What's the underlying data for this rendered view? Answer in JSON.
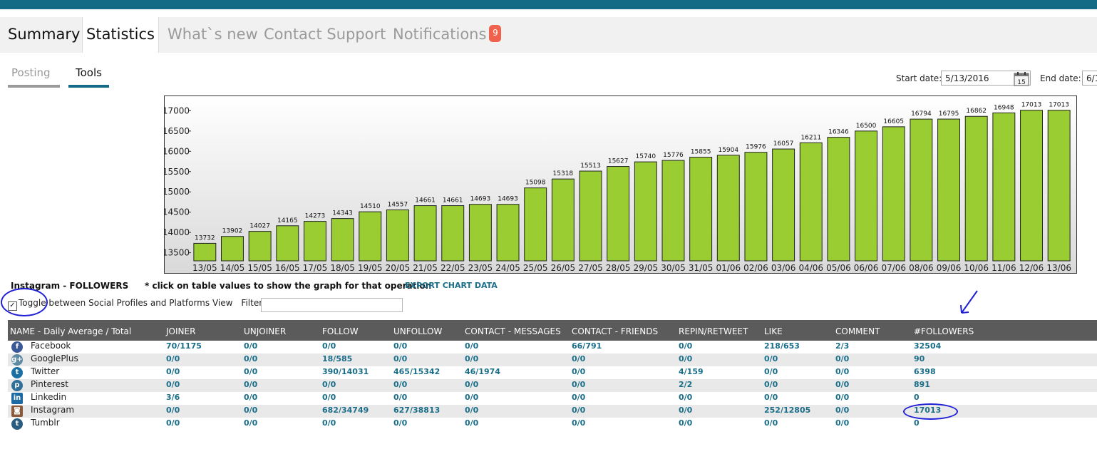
{
  "main_tabs": [
    {
      "label": "Summary",
      "state": "normal"
    },
    {
      "label": "Statistics",
      "state": "active"
    },
    {
      "label": "What`s new",
      "state": "inactive"
    },
    {
      "label": "Contact Support",
      "state": "inactive"
    },
    {
      "label": "Notifications",
      "state": "inactive"
    }
  ],
  "notifications_badge": "9",
  "sub_tabs": [
    {
      "label": "Posting"
    },
    {
      "label": "Tools"
    }
  ],
  "dates": {
    "start_label": "Start date:",
    "start_value": "5/13/2016",
    "calendar_day": "15",
    "end_label": "End date:",
    "end_value": "6/1"
  },
  "chart_title": "Instagram - FOLLOWERS",
  "chart_note": "* click on table values to show the graph for that operation",
  "export_label": "EXPORT CHART DATA",
  "toggle_label": "Toggle between Social Profiles and Platforms View",
  "filter_label": "Filter:",
  "filter_value": "",
  "chart_data": {
    "type": "bar",
    "categories": [
      "13/05",
      "14/05",
      "15/05",
      "16/05",
      "17/05",
      "18/05",
      "19/05",
      "20/05",
      "21/05",
      "22/05",
      "23/05",
      "24/05",
      "25/05",
      "26/05",
      "27/05",
      "28/05",
      "29/05",
      "30/05",
      "31/05",
      "01/06",
      "02/06",
      "03/06",
      "04/06",
      "05/06",
      "06/06",
      "07/06",
      "08/06",
      "09/06",
      "10/06",
      "11/06",
      "12/06",
      "13/06"
    ],
    "values": [
      13732,
      13902,
      14027,
      14165,
      14273,
      14343,
      14510,
      14557,
      14661,
      14661,
      14693,
      14693,
      15098,
      15318,
      15513,
      15627,
      15740,
      15776,
      15855,
      15904,
      15976,
      16057,
      16211,
      16346,
      16500,
      16605,
      16794,
      16795,
      16862,
      16948,
      17013,
      17013
    ],
    "yticks": [
      13500,
      14000,
      14500,
      15000,
      15500,
      16000,
      16500,
      17000
    ],
    "ylim": [
      13300,
      17200
    ],
    "bar_color": "#9acd32",
    "data_labels": true
  },
  "table": {
    "columns": [
      "NAME - Daily Average / Total",
      "JOINER",
      "UNJOINER",
      "FOLLOW",
      "UNFOLLOW",
      "CONTACT - MESSAGES",
      "CONTACT - FRIENDS",
      "REPIN/RETWEET",
      "LIKE",
      "COMMENT",
      "#FOLLOWERS"
    ],
    "rows": [
      {
        "name": "Facebook",
        "icon": "facebook-icon",
        "icon_glyph": "f",
        "color": "#3b5998",
        "cells": [
          "70/1175",
          "0/0",
          "0/0",
          "0/0",
          "0/0",
          "66/791",
          "0/0",
          "218/653",
          "2/3",
          "32504"
        ]
      },
      {
        "name": "GooglePlus",
        "icon": "googleplus-icon",
        "icon_glyph": "g+",
        "color": "#5e8aa4",
        "cells": [
          "0/0",
          "0/0",
          "18/585",
          "0/0",
          "0/0",
          "0/0",
          "0/0",
          "0/0",
          "0/0",
          "90"
        ]
      },
      {
        "name": "Twitter",
        "icon": "twitter-icon",
        "icon_glyph": "t",
        "color": "#1b6fa3",
        "cells": [
          "0/0",
          "0/0",
          "390/14031",
          "465/15342",
          "46/1974",
          "0/0",
          "4/159",
          "0/0",
          "0/0",
          "6398"
        ]
      },
      {
        "name": "Pinterest",
        "icon": "pinterest-icon",
        "icon_glyph": "p",
        "color": "#2f6f9a",
        "cells": [
          "0/0",
          "0/0",
          "0/0",
          "0/0",
          "0/0",
          "0/0",
          "2/2",
          "0/0",
          "0/0",
          "891"
        ]
      },
      {
        "name": "Linkedin",
        "icon": "linkedin-icon",
        "icon_glyph": "in",
        "color": "#1d6aa3",
        "cells": [
          "3/6",
          "0/0",
          "0/0",
          "0/0",
          "0/0",
          "0/0",
          "0/0",
          "0/0",
          "0/0",
          "0"
        ]
      },
      {
        "name": "Instagram",
        "icon": "instagram-icon",
        "icon_glyph": "◙",
        "color": "#8a5a3c",
        "cells": [
          "0/0",
          "0/0",
          "682/34749",
          "627/38813",
          "0/0",
          "0/0",
          "0/0",
          "252/12805",
          "0/0",
          "17013"
        ]
      },
      {
        "name": "Tumblr",
        "icon": "tumblr-icon",
        "icon_glyph": "t",
        "color": "#2a5c80",
        "cells": [
          "0/0",
          "0/0",
          "0/0",
          "0/0",
          "0/0",
          "0/0",
          "0/0",
          "0/0",
          "0/0",
          "0"
        ]
      }
    ]
  }
}
